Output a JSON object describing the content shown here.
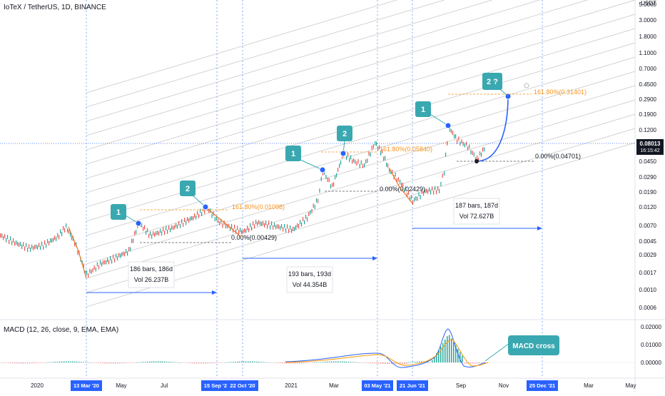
{
  "header": {
    "title": "IoTeX / TetherUS, 1D, BINANCE"
  },
  "price_axis": {
    "unit": "USDT",
    "labels": [
      "5.0000",
      "3.0000",
      "1.8000",
      "1.1000",
      "0.7000",
      "0.4500",
      "0.2900",
      "0.1900",
      "0.1200",
      "0.0800",
      "0.0450",
      "0.0290",
      "0.0190",
      "0.0120",
      "0.0070",
      "0.0045",
      "0.0029",
      "0.0017",
      "0.0010",
      "0.0006"
    ],
    "last_price": "0.08013",
    "countdown": "16:15:42"
  },
  "macd": {
    "title": "MACD (12, 26, close, 9, EMA, EMA)",
    "labels": [
      "0.02000",
      "0.01000",
      "0.00000"
    ],
    "callout": "MACD cross"
  },
  "time_axis": {
    "labels": [
      "2020",
      "May",
      "Jul",
      "2021",
      "Mar",
      "Sep",
      "Nov",
      "Mar",
      "May"
    ],
    "highlighted": [
      "13 Mar '20",
      "15 Sep '20",
      "22 Oct '20",
      "03 May '21",
      "21 Jun '21",
      "25 Dec '21"
    ]
  },
  "waves": [
    "1",
    "2",
    "1",
    "2",
    "1",
    "2 ?"
  ],
  "fib_labels": {
    "f1": "161.80%(0.01098)",
    "f1base": "0.00%(0.00429)",
    "f2": "161.80%(0.05840)",
    "f2base": "0.00%(0.02429)",
    "f3": "161.80%(0.31401)",
    "f3base": "0.00%(0.04701)"
  },
  "measures": [
    {
      "bars": "186 bars, 186d",
      "vol": "Vol 26.237B"
    },
    {
      "bars": "193 bars, 193d",
      "vol": "Vol 44.354B"
    },
    {
      "bars": "187 bars, 187d",
      "vol": "Vol 72.627B"
    }
  ],
  "colors": {
    "accent": "#2962ff",
    "bull": "#26a69a",
    "bear": "#ef5350",
    "fib": "#f7931a",
    "callout": "#3aa8b0"
  },
  "chart_data": {
    "type": "line",
    "scale": "log",
    "series": [],
    "x_range": [
      "2019-12-01",
      "2022-06-01"
    ],
    "ylim": [
      0.0006,
      5.0
    ],
    "grid": false
  }
}
